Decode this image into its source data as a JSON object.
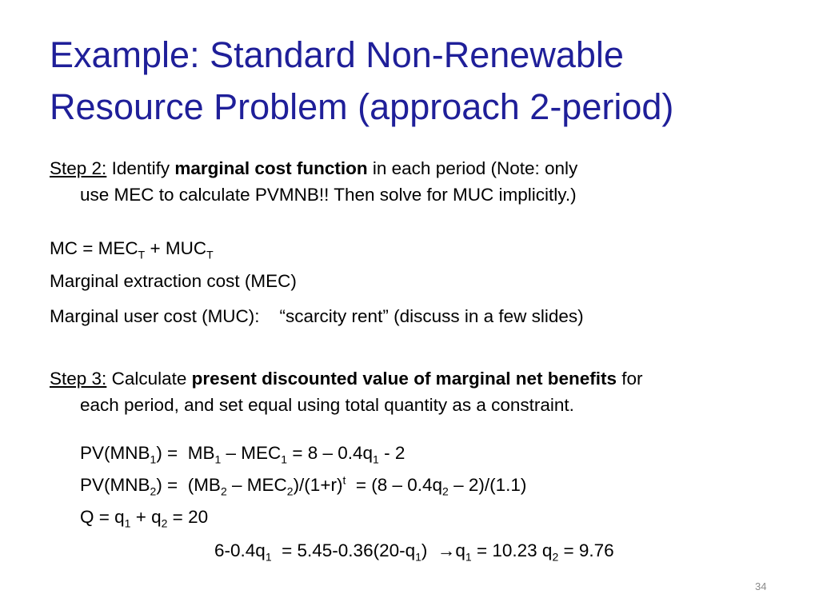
{
  "slide": {
    "title_line1": "Example: Standard Non-Renewable",
    "title_line2": "Resource Problem (approach 2-period)",
    "page_number": "34",
    "title_color": "#1f1f99"
  },
  "lines": [
    {
      "id": "step2-line1",
      "segments": [
        {
          "t": "Step 2:",
          "u": true
        },
        {
          "t": " Identify "
        },
        {
          "t": "marginal cost function",
          "b": true
        },
        {
          "t": " in each period (Note: only"
        }
      ]
    },
    {
      "id": "step2-line2",
      "segments": [
        {
          "t": "use MEC to calculate PVMNB!! Then solve for MUC implicitly.)"
        }
      ]
    },
    {
      "id": "mc-equation",
      "segments": [
        {
          "t": "MC = MEC"
        },
        {
          "t": "T",
          "sub": true
        },
        {
          "t": " + MUC"
        },
        {
          "t": "T",
          "sub": true
        }
      ]
    },
    {
      "id": "mec-definition",
      "segments": [
        {
          "t": "Marginal extraction cost (MEC)"
        }
      ]
    },
    {
      "id": "muc-definition",
      "segments": [
        {
          "t": "Marginal user cost (MUC):    “scarcity rent” (discuss in a few slides)"
        }
      ]
    },
    {
      "id": "step3-line1",
      "segments": [
        {
          "t": "Step 3:",
          "u": true
        },
        {
          "t": " Calculate "
        },
        {
          "t": "present discounted value of marginal net benefits",
          "b": true
        },
        {
          "t": " for"
        }
      ]
    },
    {
      "id": "step3-line2",
      "segments": [
        {
          "t": "each period, and set equal using total quantity as a constraint."
        }
      ]
    },
    {
      "id": "pv-mnb1",
      "segments": [
        {
          "t": "PV(MNB"
        },
        {
          "t": "1",
          "sub": true
        },
        {
          "t": ") =  MB"
        },
        {
          "t": "1",
          "sub": true
        },
        {
          "t": " – MEC"
        },
        {
          "t": "1",
          "sub": true
        },
        {
          "t": " = 8 – 0.4q"
        },
        {
          "t": "1",
          "sub": true
        },
        {
          "t": " - 2"
        }
      ]
    },
    {
      "id": "pv-mnb2",
      "segments": [
        {
          "t": "PV(MNB"
        },
        {
          "t": "2",
          "sub": true
        },
        {
          "t": ") =  (MB"
        },
        {
          "t": "2",
          "sub": true
        },
        {
          "t": " – MEC"
        },
        {
          "t": "2",
          "sub": true
        },
        {
          "t": ")/(1+r)"
        },
        {
          "t": "t",
          "sup": true
        },
        {
          "t": "  = (8 – 0.4q"
        },
        {
          "t": "2",
          "sub": true
        },
        {
          "t": " – 2)/(1.1)"
        }
      ]
    },
    {
      "id": "quantity-constraint",
      "segments": [
        {
          "t": "Q = q"
        },
        {
          "t": "1",
          "sub": true
        },
        {
          "t": " + q"
        },
        {
          "t": "2",
          "sub": true
        },
        {
          "t": " = 20"
        }
      ]
    },
    {
      "id": "solution",
      "segments": [
        {
          "t": "6-0.4q"
        },
        {
          "t": "1",
          "sub": true
        },
        {
          "t": "  = 5.45-0.36(20-q"
        },
        {
          "t": "1",
          "sub": true
        },
        {
          "t": ")  "
        },
        {
          "t": "→"
        },
        {
          "t": "q"
        },
        {
          "t": "1",
          "sub": true
        },
        {
          "t": " = 10.23 q"
        },
        {
          "t": "2",
          "sub": true
        },
        {
          "t": " = 9.76"
        }
      ]
    }
  ]
}
